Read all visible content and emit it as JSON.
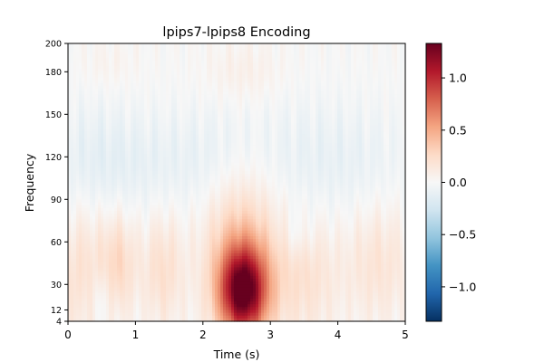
{
  "chart_data": {
    "type": "heatmap",
    "title": "lpips7-lpips8 Encoding",
    "xlabel": "Time (s)",
    "ylabel": "Frequency",
    "xlim": [
      0,
      5
    ],
    "ylim": [
      4,
      200
    ],
    "x_ticks": [
      0,
      1,
      2,
      3,
      4,
      5
    ],
    "y_ticks": [
      4,
      12,
      30,
      60,
      90,
      120,
      150,
      180,
      200
    ],
    "colorbar": {
      "colormap": "RdBu_r",
      "range": [
        -1.33,
        1.33
      ],
      "ticks": [
        1.0,
        0.5,
        0.0,
        -0.5,
        -1.0
      ],
      "tick_labels": [
        "1.0",
        "0.5",
        "0.0",
        "−0.5",
        "−1.0"
      ],
      "colors": [
        "#053061",
        "#2166ac",
        "#4393c3",
        "#92c5de",
        "#d1e5f0",
        "#f7f7f7",
        "#fddbc7",
        "#f4a582",
        "#d6604d",
        "#b2182b",
        "#67001f"
      ]
    },
    "features": [
      {
        "x": 2.6,
        "y": 25,
        "sx": 0.25,
        "sy": 22,
        "value": 1.25
      },
      {
        "x": 2.55,
        "y": 55,
        "sx": 0.38,
        "sy": 40,
        "value": 0.35
      },
      {
        "x": 0.75,
        "y": 45,
        "sx": 0.18,
        "sy": 25,
        "value": 0.25
      },
      {
        "x": 1.4,
        "y": 40,
        "sx": 0.22,
        "sy": 28,
        "value": 0.22
      },
      {
        "x": 3.5,
        "y": 35,
        "sx": 0.35,
        "sy": 30,
        "value": 0.2
      },
      {
        "x": 4.6,
        "y": 45,
        "sx": 0.35,
        "sy": 30,
        "value": 0.18
      },
      {
        "x": 0.2,
        "y": 40,
        "sx": 0.3,
        "sy": 35,
        "value": 0.2
      },
      {
        "x": 0.5,
        "y": 20,
        "sx": 0.12,
        "sy": 15,
        "value": -0.12
      },
      {
        "x": 0.35,
        "y": 115,
        "sx": 0.45,
        "sy": 30,
        "value": -0.12
      },
      {
        "x": 1.2,
        "y": 115,
        "sx": 0.5,
        "sy": 25,
        "value": -0.08
      },
      {
        "x": 2.2,
        "y": 115,
        "sx": 0.45,
        "sy": 28,
        "value": -0.1
      },
      {
        "x": 3.3,
        "y": 120,
        "sx": 0.6,
        "sy": 30,
        "value": -0.07
      },
      {
        "x": 4.3,
        "y": 115,
        "sx": 0.6,
        "sy": 28,
        "value": -0.08
      },
      {
        "x": 3.4,
        "y": 65,
        "sx": 0.15,
        "sy": 12,
        "value": -0.1
      },
      {
        "x": 2.6,
        "y": 180,
        "sx": 0.4,
        "sy": 15,
        "value": 0.08
      },
      {
        "x": 0.6,
        "y": 185,
        "sx": 0.3,
        "sy": 12,
        "value": 0.05
      }
    ]
  }
}
